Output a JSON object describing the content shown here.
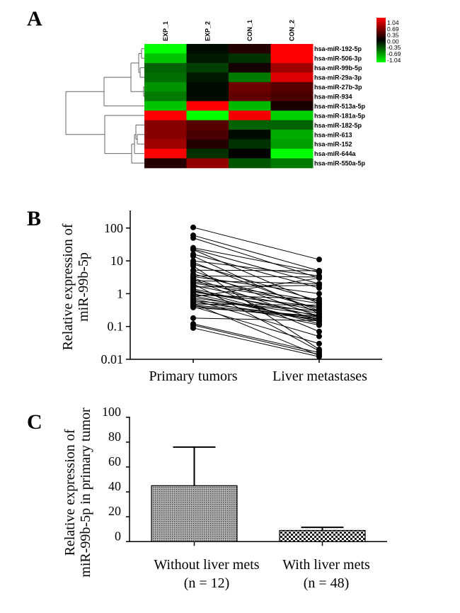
{
  "panels": {
    "a": "A",
    "b": "B",
    "c": "C"
  },
  "chart_data": [
    {
      "type": "heatmap",
      "columns": [
        "EXP_1",
        "EXP_2",
        "CON_1",
        "CON_2"
      ],
      "rows": [
        "hsa-miR-192-5p",
        "hsa-miR-506-3p",
        "hsa-miR-99b-5p",
        "hsa-miR-29a-3p",
        "hsa-miR-27b-3p",
        "hsa-miR-934",
        "hsa-miR-513a-5p",
        "hsa-miR-181a-5p",
        "hsa-miR-182-5p",
        "hsa-miR-613",
        "hsa-miR-152",
        "hsa-miR-644a",
        "hsa-miR-550a-5p"
      ],
      "values": [
        [
          -1.04,
          -0.05,
          0.15,
          1.04
        ],
        [
          -0.8,
          -0.1,
          -0.2,
          1.04
        ],
        [
          -0.4,
          -0.25,
          0.08,
          0.65
        ],
        [
          -0.45,
          -0.1,
          -0.5,
          0.9
        ],
        [
          -0.6,
          -0.05,
          0.45,
          0.35
        ],
        [
          -0.5,
          -0.05,
          0.4,
          0.3
        ],
        [
          -0.8,
          1.04,
          -0.75,
          0.1
        ],
        [
          1.04,
          -1.04,
          1.0,
          -0.85
        ],
        [
          0.55,
          0.35,
          -0.4,
          -0.4
        ],
        [
          0.55,
          0.3,
          -0.05,
          -0.7
        ],
        [
          0.65,
          0.15,
          -0.2,
          -0.65
        ],
        [
          1.04,
          -0.2,
          0.0,
          -1.04
        ],
        [
          0.15,
          0.6,
          -0.35,
          -0.5
        ]
      ],
      "legend": {
        "labels": [
          "1.04",
          "0.69",
          "0.35",
          "0.00",
          "-0.35",
          "-0.69",
          "-1.04"
        ],
        "range": [
          -1.04,
          1.04
        ]
      },
      "colors": {
        "high": "#ff0000",
        "mid": "#000000",
        "low": "#00ff00"
      },
      "dendrogram": "rows, left side"
    },
    {
      "type": "line",
      "subtype": "paired points",
      "categories": [
        "Primary tumors",
        "Liver metastases"
      ],
      "ylabel": [
        "Relative expression of",
        "miR-99b-5p"
      ],
      "yscale": "log",
      "ylim": [
        0.01,
        350
      ],
      "yticks": [
        "100",
        "10",
        "1",
        "0.1",
        "0.01"
      ],
      "pairs": [
        [
          105,
          11
        ],
        [
          60,
          5
        ],
        [
          50,
          3
        ],
        [
          25,
          4.5
        ],
        [
          23,
          2
        ],
        [
          22,
          0.5
        ],
        [
          16,
          1.5
        ],
        [
          14,
          0.25
        ],
        [
          10,
          3.5
        ],
        [
          9,
          0.3
        ],
        [
          8,
          0.6
        ],
        [
          7,
          0.02
        ],
        [
          5.2,
          5
        ],
        [
          5,
          0.2
        ],
        [
          4,
          0.35
        ],
        [
          3.5,
          3.2
        ],
        [
          3.3,
          1
        ],
        [
          3,
          0.15
        ],
        [
          2.8,
          0.07
        ],
        [
          2.5,
          2
        ],
        [
          2.3,
          0.6
        ],
        [
          2.1,
          0.5
        ],
        [
          2,
          0.018
        ],
        [
          1.8,
          0.3
        ],
        [
          1.6,
          1.8
        ],
        [
          1.4,
          0.2
        ],
        [
          1.3,
          0.12
        ],
        [
          1.2,
          0.25
        ],
        [
          1.1,
          0.4
        ],
        [
          1,
          0.14
        ],
        [
          0.9,
          0.7
        ],
        [
          0.85,
          0.15
        ],
        [
          0.8,
          3
        ],
        [
          0.75,
          0.22
        ],
        [
          0.7,
          0.11
        ],
        [
          0.65,
          0.05
        ],
        [
          0.6,
          0.3
        ],
        [
          0.55,
          0.18
        ],
        [
          0.5,
          0.013
        ],
        [
          0.48,
          0.45
        ],
        [
          0.45,
          0.2
        ],
        [
          0.42,
          0.17
        ],
        [
          0.4,
          0.03
        ],
        [
          0.38,
          0.2
        ],
        [
          0.18,
          0.15
        ],
        [
          0.12,
          0.016
        ],
        [
          0.11,
          0.014
        ],
        [
          0.09,
          0.012
        ]
      ]
    },
    {
      "type": "bar",
      "categories": [
        "Without liver mets",
        "With liver mets"
      ],
      "category_n": [
        "(n = 12)",
        "(n = 48)"
      ],
      "values": [
        45,
        9
      ],
      "error_upper": [
        76,
        11.5
      ],
      "ylabel": [
        "Relative expression of",
        "miR-99b-5p in primary tumor"
      ],
      "ylim": [
        0,
        100
      ],
      "yticks": [
        "100",
        "80",
        "60",
        "40",
        "20",
        "0"
      ]
    }
  ]
}
